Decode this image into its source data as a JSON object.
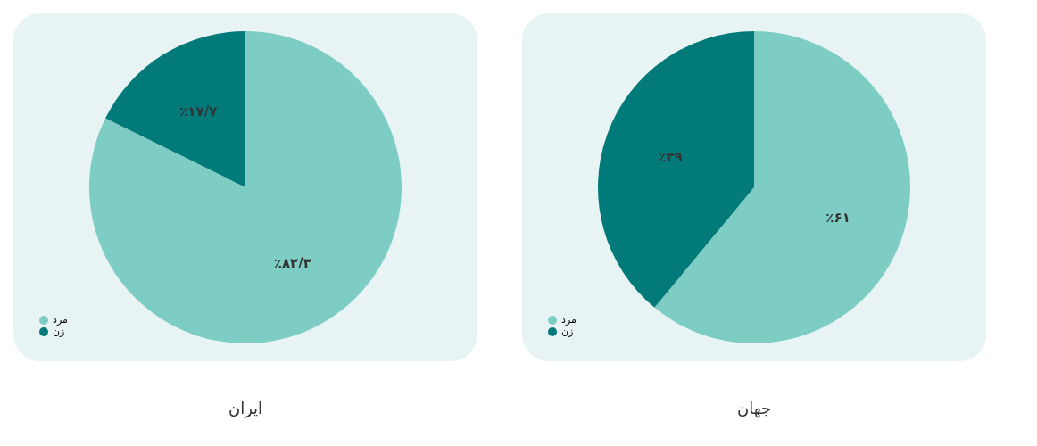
{
  "chart_data": [
    {
      "type": "pie",
      "title": "ایران",
      "categories": [
        "مرد",
        "زن"
      ],
      "values": [
        82.3,
        17.7
      ],
      "colors": [
        "#7ecdc5",
        "#037a7a"
      ],
      "value_labels": [
        "٪۸۲/۳",
        "٪۱۷/۷"
      ],
      "legend": "bottom left"
    },
    {
      "type": "pie",
      "title": "جهان",
      "categories": [
        "مرد",
        "زن"
      ],
      "values": [
        61,
        39
      ],
      "colors": [
        "#7ecdc5",
        "#037a7a"
      ],
      "value_labels": [
        "٪۶۱",
        "٪۳۹"
      ],
      "legend": "bottom left"
    }
  ]
}
